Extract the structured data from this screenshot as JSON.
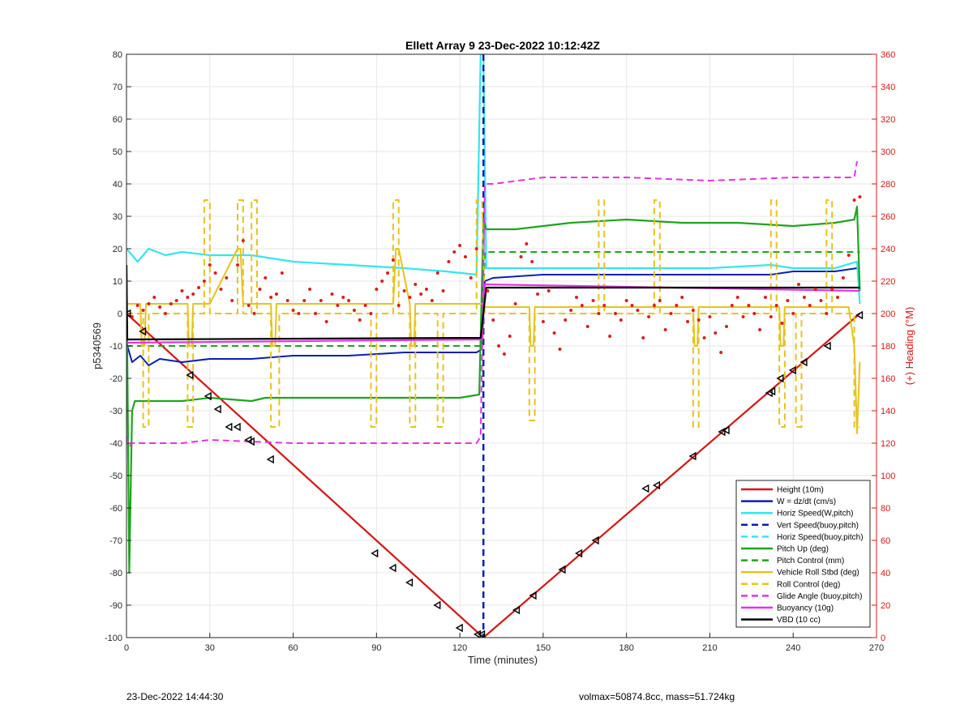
{
  "chart_data": {
    "type": "line",
    "title": "Ellett Array 9 23-Dec-2022 10:12:42Z",
    "xlabel": "Time (minutes)",
    "ylabel": "p5340569",
    "y2label": "(+) Heading (°M)",
    "xlim": [
      0,
      270
    ],
    "ylim": [
      -100,
      80
    ],
    "y2lim": [
      0,
      360
    ],
    "xticks": [
      0,
      30,
      60,
      90,
      120,
      150,
      180,
      210,
      240,
      270
    ],
    "yticks": [
      -100,
      -90,
      -80,
      -70,
      -60,
      -50,
      -40,
      -30,
      -20,
      -10,
      0,
      10,
      20,
      30,
      40,
      50,
      60,
      70,
      80
    ],
    "y2ticks": [
      0,
      20,
      40,
      60,
      80,
      100,
      120,
      140,
      160,
      180,
      200,
      220,
      240,
      260,
      280,
      300,
      320,
      340,
      360
    ],
    "grid": true,
    "legend_position": "bottom-right",
    "legend": [
      {
        "label": "Height (10m)",
        "color": "#d71414",
        "dash": false
      },
      {
        "label": "W = dz/dt (cm/s)",
        "color": "#0a1fb4",
        "dash": false
      },
      {
        "label": "Horiz Speed(W,pitch)",
        "color": "#33e6f0",
        "dash": false
      },
      {
        "label": "Vert Speed(buoy,pitch)",
        "color": "#0a1fb4",
        "dash": true
      },
      {
        "label": "Horiz Speed(buoy,pitch)",
        "color": "#33e6f0",
        "dash": true
      },
      {
        "label": "Pitch Up (deg)",
        "color": "#1ea51e",
        "dash": false
      },
      {
        "label": "Pitch Control (mm)",
        "color": "#1ea51e",
        "dash": true
      },
      {
        "label": "Vehicle Roll Stbd (deg)",
        "color": "#e6c31e",
        "dash": false
      },
      {
        "label": "Roll Control (deg)",
        "color": "#e6c31e",
        "dash": true
      },
      {
        "label": "Glide Angle (buoy,pitch)",
        "color": "#e632e6",
        "dash": true
      },
      {
        "label": "Buoyancy (10g)",
        "color": "#e632e6",
        "dash": false
      },
      {
        "label": "VBD (10 cc)",
        "color": "#000000",
        "dash": false
      }
    ],
    "series": [
      {
        "name": "Height (10m)",
        "color": "#d71414",
        "dash": false,
        "width": 2.2,
        "x": [
          0,
          128.5,
          264
        ],
        "y": [
          0,
          -100,
          0
        ]
      },
      {
        "name": "W = dz/dt (cm/s)",
        "color": "#0a1fb4",
        "dash": false,
        "width": 2,
        "x": [
          0,
          2,
          5,
          8,
          12,
          20,
          30,
          45,
          60,
          80,
          100,
          115,
          126,
          128,
          129,
          132,
          150,
          180,
          210,
          232,
          240,
          255,
          263
        ],
        "y": [
          -9,
          -15,
          -13,
          -16,
          -14,
          -15,
          -14,
          -14,
          -13,
          -13,
          -12,
          -12,
          -12,
          -11,
          10,
          11,
          12,
          12,
          12,
          12,
          13,
          13,
          14
        ]
      },
      {
        "name": "Horiz Speed(W,pitch)",
        "color": "#33e6f0",
        "dash": false,
        "width": 2.2,
        "x": [
          0,
          2,
          4,
          8,
          14,
          20,
          30,
          45,
          60,
          80,
          100,
          115,
          126,
          127.5,
          128.5,
          129.5,
          132,
          150,
          180,
          210,
          232,
          240,
          255,
          263,
          264
        ],
        "y": [
          20,
          18,
          16,
          20,
          18,
          19,
          18,
          18,
          16,
          15,
          14,
          13,
          12,
          80,
          80,
          14,
          14,
          14,
          14,
          14,
          15,
          14,
          14,
          16,
          3
        ]
      },
      {
        "name": "Vert Speed(buoy,pitch)",
        "color": "#0a1fb4",
        "dash": true,
        "width": 2.5,
        "x": [
          128.5,
          128.5
        ],
        "y": [
          80,
          -100
        ]
      },
      {
        "name": "Pitch Up (deg)",
        "color": "#1ea51e",
        "dash": false,
        "width": 2.2,
        "x": [
          0,
          1,
          2,
          3,
          6,
          20,
          30,
          45,
          50,
          60,
          80,
          100,
          120,
          127,
          128.5,
          129.5,
          140,
          160,
          180,
          200,
          220,
          240,
          255,
          262,
          263,
          264
        ],
        "y": [
          15,
          -80,
          -30,
          -27,
          -27,
          -27,
          -26,
          -27,
          -26,
          -26,
          -26,
          -26,
          -26,
          -25,
          29,
          26,
          26,
          28,
          29,
          28,
          28,
          27,
          28,
          29,
          33,
          7
        ]
      },
      {
        "name": "Pitch Control (mm)",
        "color": "#1ea51e",
        "dash": true,
        "width": 2,
        "x": [
          0,
          128,
          129,
          264
        ],
        "y": [
          -10,
          -10,
          19,
          19
        ]
      },
      {
        "name": "Vehicle Roll Stbd (deg)",
        "color": "#e6c31e",
        "dash": false,
        "width": 2,
        "x": [
          0,
          5,
          5.5,
          6.5,
          7,
          22,
          22.5,
          23.5,
          24,
          30,
          40,
          41,
          42,
          45,
          52,
          52.5,
          53.5,
          54,
          70,
          96,
          97,
          98,
          102,
          102.5,
          103.5,
          104,
          115,
          128,
          129,
          140,
          145,
          145.5,
          146.5,
          147,
          160,
          204,
          204.5,
          205.5,
          206,
          220,
          235,
          235.5,
          236.5,
          237,
          260,
          262,
          263,
          264
        ],
        "y": [
          3,
          3,
          -10,
          -10,
          3,
          3,
          -10,
          -10,
          3,
          3,
          20,
          20,
          3,
          3,
          3,
          -10,
          -10,
          3,
          3,
          3,
          20,
          20,
          3,
          -10,
          -10,
          3,
          3,
          3,
          2,
          2,
          2,
          -10,
          -10,
          2,
          2,
          2,
          -10,
          -10,
          2,
          2,
          2,
          -10,
          -10,
          2,
          2,
          -10,
          -37,
          -15
        ]
      },
      {
        "name": "Roll Control (deg)",
        "color": "#e6c31e",
        "dash": true,
        "width": 2,
        "x": [
          0,
          6,
          6,
          8,
          8,
          22,
          22,
          24,
          24,
          28,
          28,
          30,
          30,
          40,
          40,
          42,
          42,
          45,
          45,
          47,
          47,
          52,
          52,
          55,
          55,
          88,
          88,
          90,
          90,
          96,
          96,
          98,
          98,
          102,
          102,
          104,
          104,
          112,
          112,
          114,
          114,
          126,
          126,
          128,
          129,
          145,
          145,
          147,
          147,
          170,
          170,
          172,
          172,
          190,
          190,
          192,
          192,
          204,
          204,
          206,
          206,
          232,
          232,
          234,
          234,
          235,
          235,
          237,
          237,
          241,
          241,
          243,
          243,
          252,
          252,
          254,
          254,
          262,
          262,
          264
        ],
        "y": [
          0,
          0,
          -35,
          -35,
          0,
          0,
          -35,
          -35,
          0,
          0,
          35,
          35,
          0,
          0,
          35,
          35,
          0,
          0,
          35,
          35,
          0,
          0,
          -35,
          -35,
          0,
          0,
          -35,
          -35,
          0,
          0,
          35,
          35,
          0,
          0,
          -35,
          -35,
          0,
          0,
          -35,
          -35,
          0,
          0,
          35,
          35,
          0,
          0,
          -33,
          -33,
          0,
          0,
          35,
          35,
          0,
          0,
          35,
          35,
          0,
          0,
          -35,
          -35,
          0,
          0,
          35,
          35,
          0,
          0,
          -35,
          -35,
          0,
          0,
          -35,
          -35,
          0,
          0,
          35,
          35,
          0,
          0,
          -35,
          -35
        ]
      },
      {
        "name": "Glide Angle (buoy,pitch)",
        "color": "#e632e6",
        "dash": true,
        "width": 2,
        "x": [
          0,
          1,
          2,
          5,
          20,
          30,
          60,
          90,
          126,
          127.5,
          129,
          132,
          150,
          180,
          210,
          240,
          262,
          263
        ],
        "y": [
          -38,
          -41,
          -40,
          -40,
          -40,
          -39,
          -40,
          -40,
          -40,
          -38,
          40,
          40,
          42,
          42,
          41,
          42,
          42,
          47
        ]
      },
      {
        "name": "Buoyancy (10g)",
        "color": "#e632e6",
        "dash": false,
        "width": 2.2,
        "x": [
          0,
          128,
          129,
          264
        ],
        "y": [
          -9,
          -8,
          9,
          7
        ]
      },
      {
        "name": "VBD (10 cc)",
        "color": "#000000",
        "dash": false,
        "width": 2.2,
        "x": [
          0,
          0.3,
          127.5,
          129.5,
          264
        ],
        "y": [
          15,
          -8,
          -7.5,
          8,
          8
        ]
      }
    ],
    "heading_points": {
      "name": "Heading",
      "color": "#dc1e1e",
      "axis": "right",
      "x": [
        2,
        4,
        6,
        8,
        10,
        12,
        14,
        16,
        18,
        20,
        22,
        24,
        26,
        28,
        30,
        32,
        34,
        36,
        38,
        40,
        42,
        44,
        46,
        48,
        50,
        52,
        54,
        56,
        58,
        60,
        62,
        64,
        66,
        68,
        70,
        72,
        74,
        76,
        78,
        80,
        82,
        84,
        86,
        88,
        90,
        92,
        94,
        96,
        98,
        100,
        102,
        104,
        106,
        108,
        110,
        112,
        114,
        116,
        118,
        120,
        122,
        124,
        126,
        130,
        132,
        134,
        136,
        138,
        140,
        142,
        144,
        146,
        148,
        150,
        152,
        154,
        156,
        158,
        160,
        162,
        164,
        166,
        168,
        170,
        172,
        174,
        176,
        178,
        180,
        182,
        184,
        186,
        188,
        190,
        192,
        194,
        196,
        198,
        200,
        202,
        204,
        206,
        208,
        210,
        212,
        214,
        216,
        218,
        220,
        222,
        224,
        226,
        228,
        230,
        232,
        234,
        236,
        238,
        240,
        242,
        244,
        246,
        248,
        250,
        252,
        254,
        256,
        258,
        260,
        262,
        264
      ],
      "y": [
        198,
        205,
        202,
        206,
        210,
        204,
        200,
        206,
        208,
        214,
        210,
        212,
        216,
        220,
        230,
        225,
        215,
        222,
        208,
        230,
        245,
        205,
        200,
        215,
        222,
        210,
        212,
        225,
        208,
        202,
        200,
        208,
        215,
        200,
        208,
        195,
        212,
        205,
        210,
        208,
        202,
        196,
        205,
        200,
        215,
        220,
        225,
        233,
        205,
        214,
        210,
        218,
        212,
        215,
        208,
        225,
        214,
        232,
        238,
        242,
        235,
        222,
        240,
        214,
        196,
        180,
        175,
        186,
        206,
        235,
        243,
        232,
        212,
        195,
        214,
        188,
        178,
        196,
        202,
        210,
        205,
        192,
        208,
        200,
        205,
        186,
        200,
        196,
        208,
        205,
        202,
        185,
        198,
        205,
        208,
        190,
        200,
        205,
        210,
        195,
        202,
        196,
        185,
        198,
        188,
        176,
        192,
        205,
        210,
        198,
        205,
        200,
        190,
        210,
        198,
        205,
        194,
        208,
        200,
        218,
        210,
        205,
        215,
        208,
        200,
        215,
        210,
        222,
        236,
        270,
        272
      ]
    },
    "markers": {
      "x": [
        0.5,
        6,
        23,
        29.5,
        33,
        37,
        40,
        44,
        45,
        52,
        89.5,
        96,
        102,
        112,
        120,
        126.5,
        128,
        140.5,
        146.5,
        157,
        163,
        169,
        187,
        191,
        204,
        214.5,
        216,
        231.5,
        232.5,
        235.5,
        240,
        244,
        252.5,
        264
      ],
      "y": [
        0,
        -5.5,
        -19,
        -25.5,
        -29.5,
        -35,
        -35,
        -39,
        -39.5,
        -45,
        -74,
        -78.5,
        -83,
        -90,
        -97,
        -99,
        -99,
        -91.5,
        -87,
        -79,
        -74,
        -70,
        -54,
        -53,
        -44,
        -36.5,
        -36,
        -24.5,
        -24,
        -20,
        -17.5,
        -15,
        -10,
        -0.5
      ]
    },
    "footer_left": "23-Dec-2022 14:44:30",
    "footer_right": "volmax=50874.8cc, mass=51.724kg"
  }
}
